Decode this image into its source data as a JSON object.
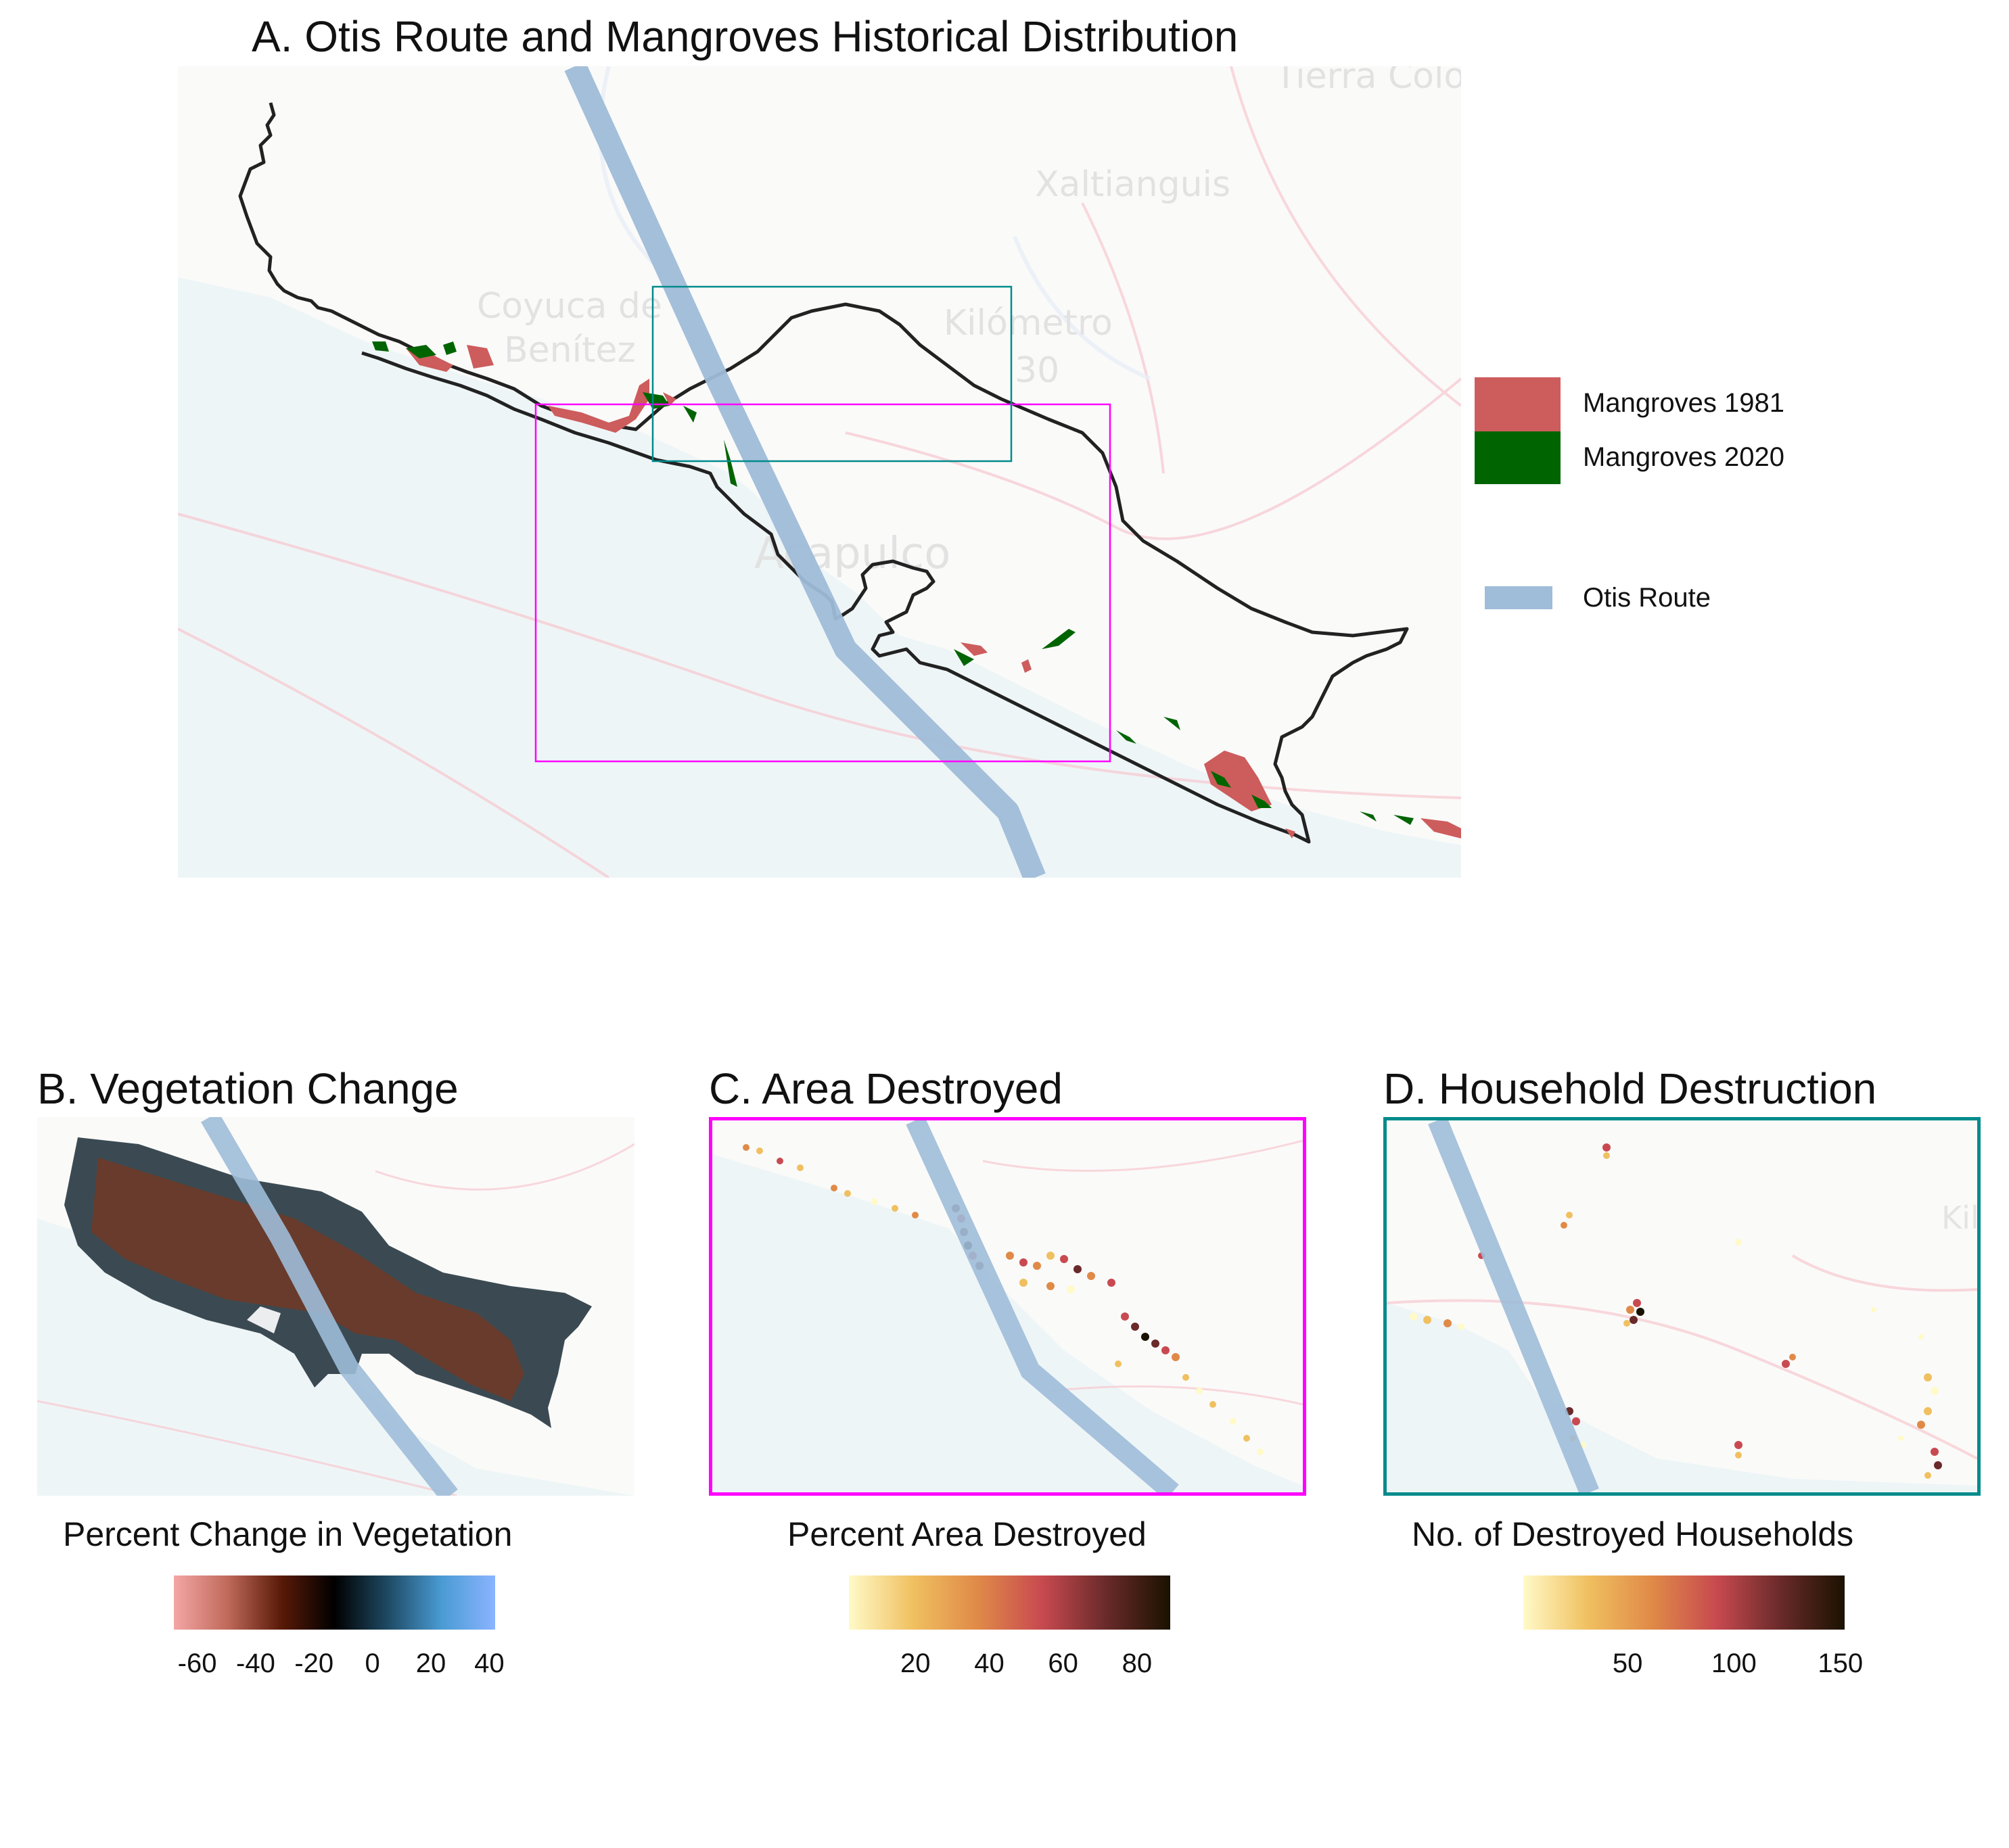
{
  "panel_a": {
    "title": "A. Otis Route and Mangroves Historical Distribution",
    "basemap_labels": [
      "Tierra Colo",
      "Xaltianguis",
      "Coyuca de",
      "Benítez",
      "Kilómetro",
      "30",
      "Acapulco"
    ],
    "legend": {
      "mangroves_1981": {
        "label": "Mangroves 1981",
        "color": "#cd5c5c"
      },
      "mangroves_2020": {
        "label": "Mangroves 2020",
        "color": "#006400"
      },
      "otis_route": {
        "label": "Otis Route",
        "color": "#9fbcd8"
      }
    },
    "inset_colors": {
      "area_box": "#ff00ff",
      "household_box": "#008b8b"
    }
  },
  "panel_b": {
    "title": "B. Vegetation Change",
    "colorbar_title": "Percent Change in Vegetation",
    "ticks": [
      "-60",
      "-40",
      "-20",
      "0",
      "20",
      "40"
    ],
    "range": [
      -68,
      42
    ],
    "colors": [
      "#f4a6a6",
      "#c06a5a",
      "#5a1a08",
      "#000000",
      "#1e4a64",
      "#4a9bd4",
      "#8ab4ff"
    ]
  },
  "panel_c": {
    "title": "C. Area Destroyed",
    "colorbar_title": "Percent Area Destroyed",
    "ticks": [
      "20",
      "40",
      "60",
      "80"
    ],
    "range": [
      2,
      89
    ],
    "colors": [
      "#fffac8",
      "#f0c060",
      "#e08a48",
      "#c84a50",
      "#6a2a2a",
      "#1a1200"
    ]
  },
  "panel_d": {
    "title": "D. Household Destruction",
    "colorbar_title": "No. of Destroyed Households",
    "ticks": [
      "50",
      "100",
      "150"
    ],
    "range": [
      1,
      152
    ],
    "colors": [
      "#fffac8",
      "#f0c060",
      "#e08a48",
      "#c84a50",
      "#6a2a2a",
      "#1a1200"
    ]
  }
}
